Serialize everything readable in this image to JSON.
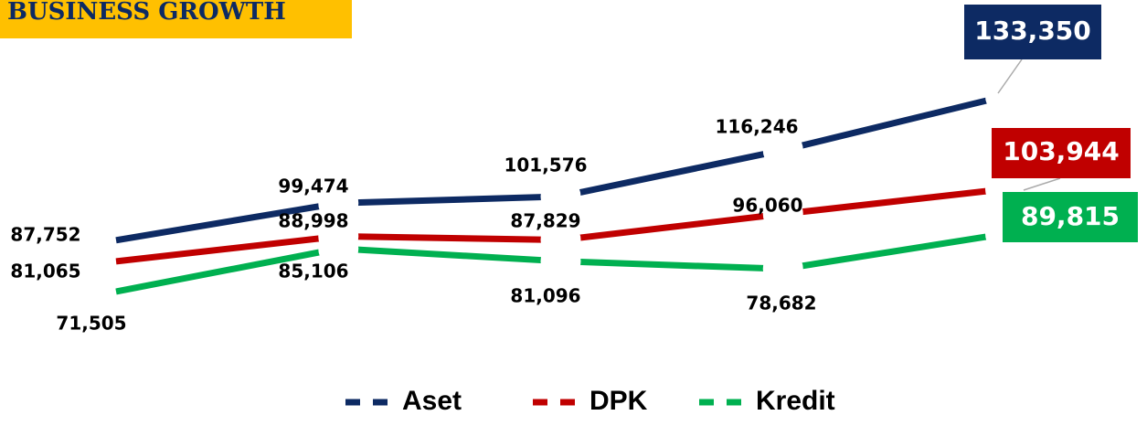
{
  "chart_data": {
    "type": "line",
    "title": "BUSINESS GROWTH",
    "categories": [
      null,
      null,
      null,
      null,
      null
    ],
    "series": [
      {
        "name": "Aset",
        "color": "#0d2a63",
        "values": [
          87752,
          99474,
          101576,
          116246,
          133350
        ],
        "value_labels": [
          "87,752",
          "99,474",
          "101,576",
          "116,246",
          "133,350"
        ]
      },
      {
        "name": "DPK",
        "color": "#c00000",
        "values": [
          81065,
          88998,
          87829,
          96060,
          103944
        ],
        "value_labels": [
          "81,065",
          "88,998",
          "87,829",
          "96,060",
          "103,944"
        ]
      },
      {
        "name": "Kredit",
        "color": "#00b050",
        "values": [
          71505,
          85106,
          81096,
          78682,
          89815
        ],
        "value_labels": [
          "71,505",
          "85,106",
          "81,096",
          "78,682",
          "89,815"
        ]
      }
    ]
  }
}
